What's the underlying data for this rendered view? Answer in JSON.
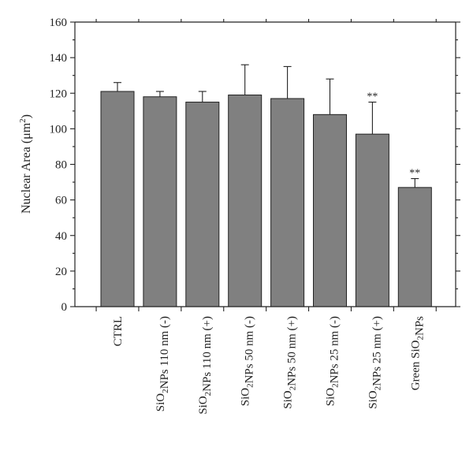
{
  "chart_data": {
    "type": "bar",
    "ylabel": "Nuclear Area (μm²)",
    "ylim": [
      0,
      160
    ],
    "yticks": [
      0,
      20,
      40,
      60,
      80,
      100,
      120,
      140,
      160
    ],
    "categories": [
      "CTRL",
      "SiO₂NPs 110 nm (-)",
      "SiO₂NPs 110 nm (+)",
      "SiO₂NPs 50 nm (-)",
      "SiO₂NPs 50 nm (+)",
      "SiO₂NPs 25 nm (-)",
      "SiO₂NPs 25 nm (+)",
      "Green SiO₂NPs"
    ],
    "values": [
      121,
      118,
      115,
      119,
      117,
      108,
      97,
      67
    ],
    "errors": [
      5,
      3,
      6,
      17,
      18,
      20,
      18,
      5
    ],
    "significance": [
      "",
      "",
      "",
      "",
      "",
      "",
      "**",
      "**"
    ],
    "bar_color": "#808080",
    "grid": false,
    "legend": "none"
  }
}
